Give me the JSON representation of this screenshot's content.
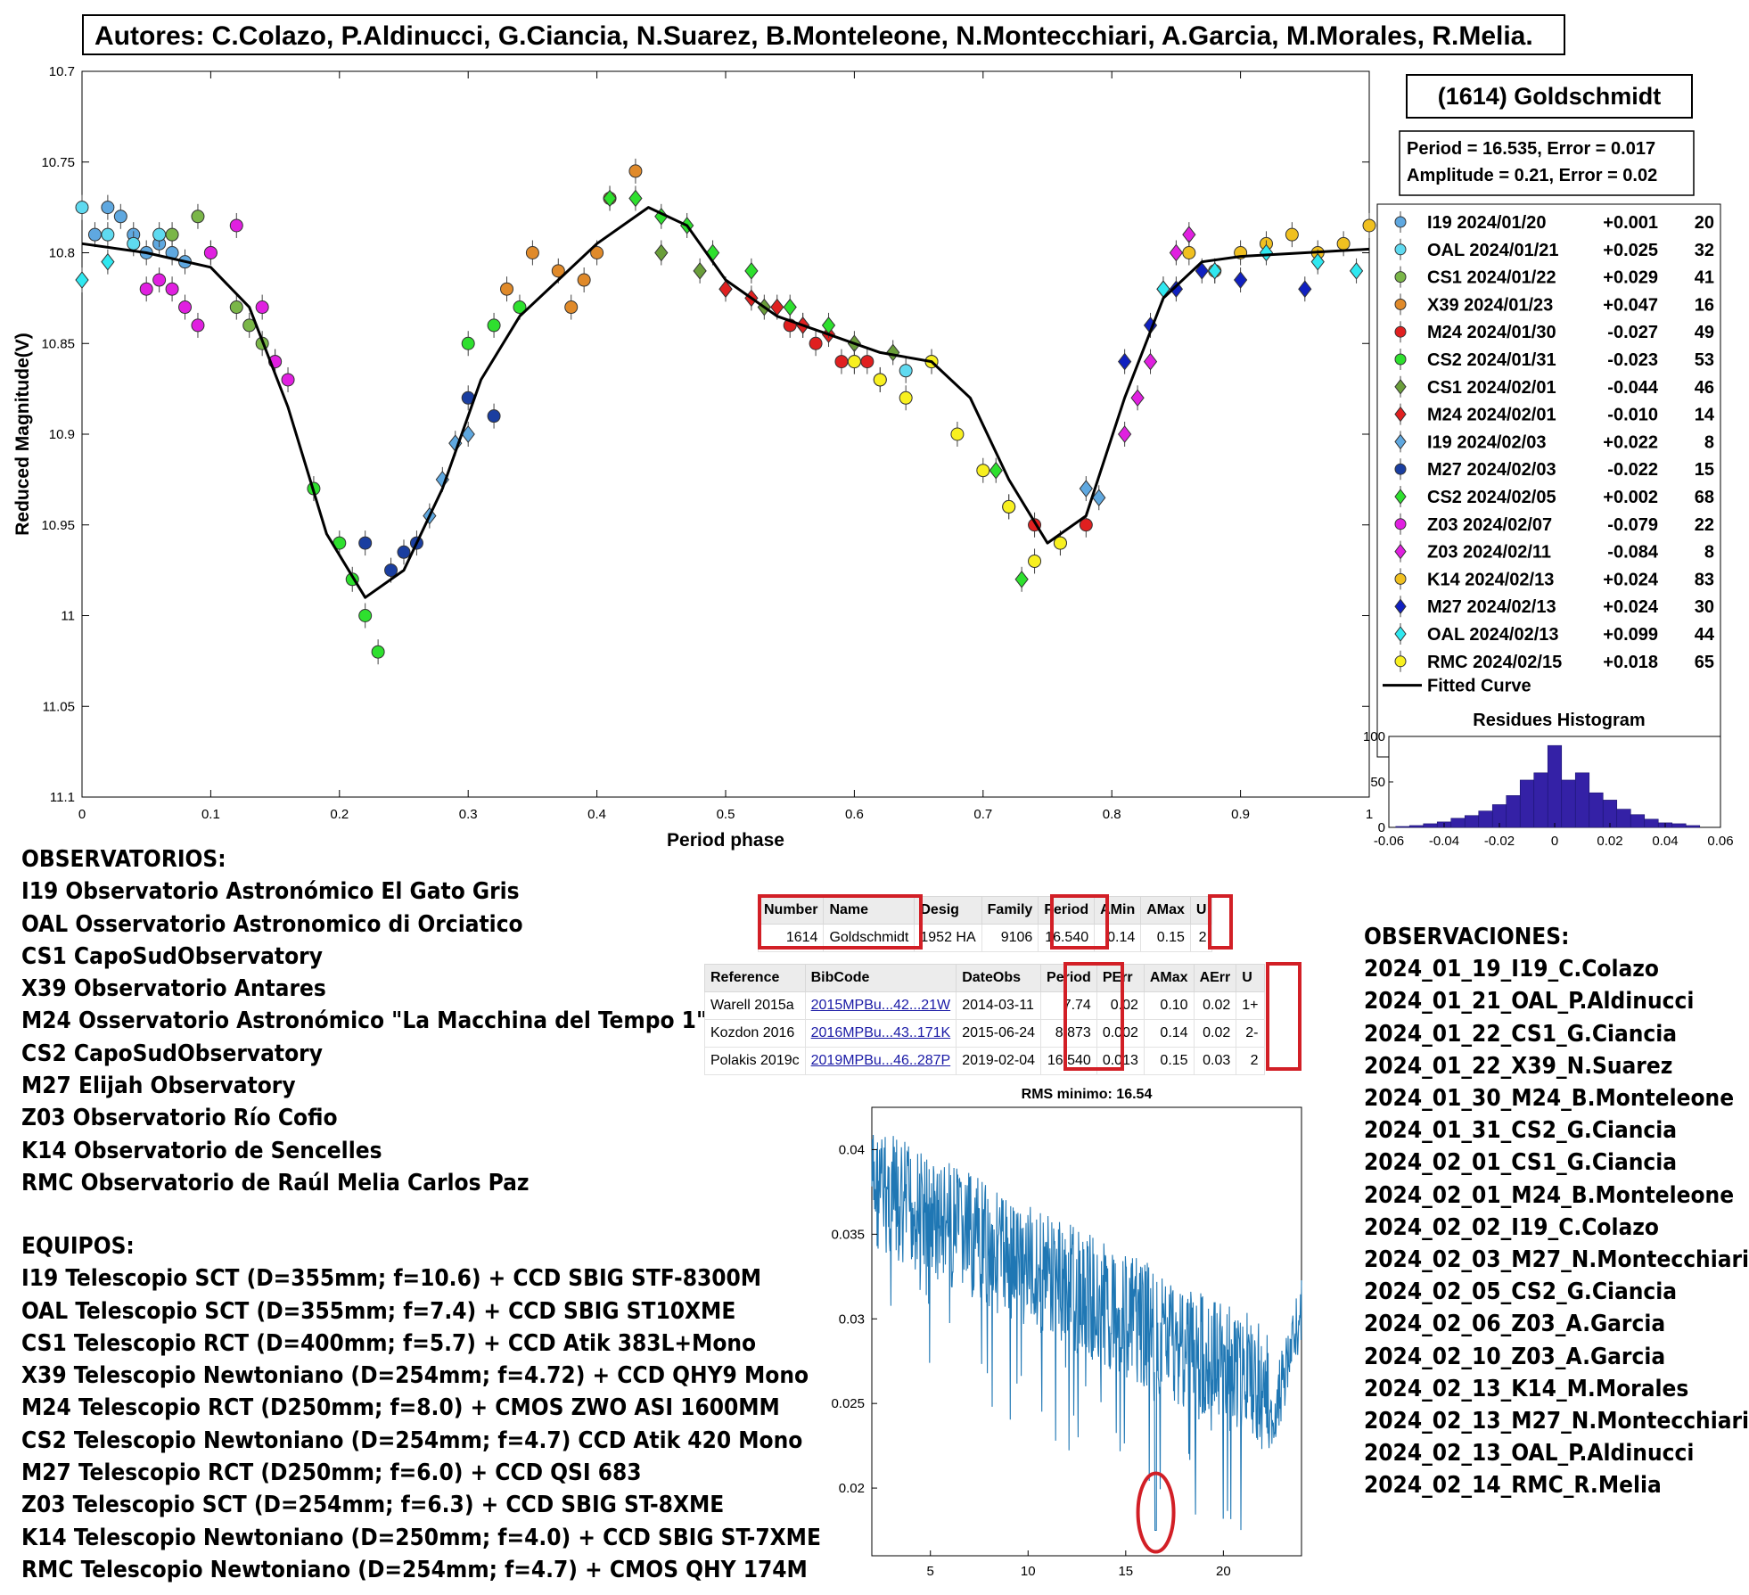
{
  "authors": "Autores: C.Colazo, P.Aldinucci, G.Ciancia, N.Suarez, B.Monteleone, N.Montecchiari, A.Garcia, M.Morales, R.Melia.",
  "object_name": "(1614) Goldschmidt",
  "period_text": "Period =  16.535, Error = 0.017",
  "amplitude_text": "Amplitude = 0.21, Error = 0.02",
  "chart_data": [
    {
      "type": "scatter",
      "xlabel": "Period phase",
      "ylabel": "Reduced Magnitude(V)",
      "xlim": [
        0,
        1
      ],
      "ylim": [
        10.7,
        11.1
      ],
      "y_reversed": true,
      "x_ticks": [
        "0",
        "0.1",
        "0.2",
        "0.3",
        "0.4",
        "0.5",
        "0.6",
        "0.7",
        "0.8",
        "0.9",
        "1"
      ],
      "y_ticks": [
        "10.7",
        "10.75",
        "10.8",
        "10.85",
        "10.9",
        "10.95",
        "11",
        "11.05",
        "11.1"
      ],
      "fitted_curve": {
        "name": "Fitted Curve",
        "x": [
          0,
          0.05,
          0.1,
          0.13,
          0.16,
          0.19,
          0.22,
          0.25,
          0.28,
          0.31,
          0.34,
          0.37,
          0.4,
          0.44,
          0.47,
          0.5,
          0.54,
          0.58,
          0.62,
          0.66,
          0.69,
          0.72,
          0.75,
          0.78,
          0.81,
          0.84,
          0.87,
          0.9,
          0.95,
          1.0
        ],
        "y": [
          10.795,
          10.8,
          10.808,
          10.83,
          10.885,
          10.955,
          10.99,
          10.975,
          10.93,
          10.87,
          10.835,
          10.815,
          10.795,
          10.775,
          10.785,
          10.815,
          10.835,
          10.845,
          10.855,
          10.86,
          10.88,
          10.925,
          10.96,
          10.945,
          10.88,
          10.825,
          10.805,
          10.802,
          10.8,
          10.798
        ]
      },
      "legend_position": "right",
      "series": [
        {
          "name": "I19 2024/01/20",
          "offset": "+0.001",
          "count": "20",
          "color": "#5fa8e0",
          "marker": "circle",
          "x": [
            0.01,
            0.02,
            0.03,
            0.04,
            0.05,
            0.06,
            0.07,
            0.08
          ],
          "y": [
            10.79,
            10.775,
            10.78,
            10.79,
            10.8,
            10.795,
            10.8,
            10.805
          ]
        },
        {
          "name": "OAL 2024/01/21",
          "offset": "+0.025",
          "count": "32",
          "color": "#5fdaf0",
          "marker": "circle",
          "x": [
            0.0,
            0.02,
            0.04,
            0.06,
            0.6,
            0.62,
            0.64,
            0.66
          ],
          "y": [
            10.775,
            10.79,
            10.795,
            10.79,
            10.86,
            10.87,
            10.865,
            10.86
          ]
        },
        {
          "name": "CS1 2024/01/22",
          "offset": "+0.029",
          "count": "41",
          "color": "#7ab648",
          "marker": "circle",
          "x": [
            0.07,
            0.09,
            0.1,
            0.12,
            0.13,
            0.14,
            0.15
          ],
          "y": [
            10.79,
            10.78,
            10.8,
            10.83,
            10.84,
            10.85,
            10.86
          ]
        },
        {
          "name": "X39 2024/01/23",
          "offset": "+0.047",
          "count": "16",
          "color": "#e08a2a",
          "marker": "circle",
          "x": [
            0.33,
            0.35,
            0.37,
            0.38,
            0.39,
            0.4,
            0.41,
            0.43
          ],
          "y": [
            10.82,
            10.8,
            10.81,
            10.83,
            10.815,
            10.8,
            10.77,
            10.755
          ]
        },
        {
          "name": "M24 2024/01/30",
          "offset": "-0.027",
          "count": "49",
          "color": "#e02020",
          "marker": "circle",
          "x": [
            0.55,
            0.57,
            0.59,
            0.61,
            0.72,
            0.74,
            0.76,
            0.78
          ],
          "y": [
            10.84,
            10.85,
            10.86,
            10.86,
            10.94,
            10.95,
            10.96,
            10.95
          ]
        },
        {
          "name": "CS2 2024/01/31",
          "offset": "-0.023",
          "count": "53",
          "color": "#2ee02e",
          "marker": "circle",
          "x": [
            0.18,
            0.2,
            0.21,
            0.22,
            0.23,
            0.3,
            0.32,
            0.34
          ],
          "y": [
            10.93,
            10.96,
            10.98,
            11.0,
            11.02,
            10.85,
            10.84,
            10.83
          ]
        },
        {
          "name": "CS1 2024/02/01",
          "offset": "-0.044",
          "count": "46",
          "color": "#6a9e3a",
          "marker": "diamond",
          "x": [
            0.45,
            0.48,
            0.5,
            0.53,
            0.56,
            0.6,
            0.63
          ],
          "y": [
            10.8,
            10.81,
            10.82,
            10.83,
            10.84,
            10.85,
            10.855
          ]
        },
        {
          "name": "M24 2024/02/01",
          "offset": "-0.010",
          "count": "14",
          "color": "#e02020",
          "marker": "diamond",
          "x": [
            0.5,
            0.52,
            0.54,
            0.56,
            0.58
          ],
          "y": [
            10.82,
            10.825,
            10.83,
            10.84,
            10.845
          ]
        },
        {
          "name": "I19 2024/02/03",
          "offset": "+0.022",
          "count": "8",
          "color": "#5fa8e0",
          "marker": "diamond",
          "x": [
            0.27,
            0.28,
            0.29,
            0.3,
            0.78,
            0.79
          ],
          "y": [
            10.945,
            10.925,
            10.905,
            10.9,
            10.93,
            10.935
          ]
        },
        {
          "name": "M27 2024/02/03",
          "offset": "-0.022",
          "count": "15",
          "color": "#1a3ea0",
          "marker": "circle",
          "x": [
            0.22,
            0.24,
            0.25,
            0.26,
            0.3,
            0.32
          ],
          "y": [
            10.96,
            10.975,
            10.965,
            10.96,
            10.88,
            10.89
          ]
        },
        {
          "name": "CS2 2024/02/05",
          "offset": "+0.002",
          "count": "68",
          "color": "#2ee02e",
          "marker": "diamond",
          "x": [
            0.41,
            0.43,
            0.45,
            0.47,
            0.49,
            0.52,
            0.55,
            0.58,
            0.71,
            0.73
          ],
          "y": [
            10.77,
            10.77,
            10.78,
            10.785,
            10.8,
            10.81,
            10.83,
            10.84,
            10.92,
            10.98
          ]
        },
        {
          "name": "Z03 2024/02/07",
          "offset": "-0.079",
          "count": "22",
          "color": "#e020e0",
          "marker": "circle",
          "x": [
            0.05,
            0.06,
            0.07,
            0.08,
            0.09,
            0.1,
            0.12,
            0.14,
            0.15,
            0.16
          ],
          "y": [
            10.82,
            10.815,
            10.82,
            10.83,
            10.84,
            10.8,
            10.785,
            10.83,
            10.86,
            10.87
          ]
        },
        {
          "name": "Z03 2024/02/11",
          "offset": "-0.084",
          "count": "8",
          "color": "#e020e0",
          "marker": "diamond",
          "x": [
            0.81,
            0.82,
            0.83,
            0.84,
            0.85,
            0.86
          ],
          "y": [
            10.9,
            10.88,
            10.86,
            10.82,
            10.8,
            10.79
          ]
        },
        {
          "name": "K14 2024/02/13",
          "offset": "+0.024",
          "count": "83",
          "color": "#f0c020",
          "marker": "circle",
          "x": [
            0.86,
            0.88,
            0.9,
            0.92,
            0.94,
            0.96,
            0.98,
            1.0
          ],
          "y": [
            10.8,
            10.81,
            10.8,
            10.795,
            10.79,
            10.8,
            10.795,
            10.785
          ]
        },
        {
          "name": "M27 2024/02/13",
          "offset": "+0.024",
          "count": "30",
          "color": "#1020c0",
          "marker": "diamond",
          "x": [
            0.81,
            0.83,
            0.85,
            0.87,
            0.9,
            0.95
          ],
          "y": [
            10.86,
            10.84,
            10.82,
            10.81,
            10.815,
            10.82
          ]
        },
        {
          "name": "OAL 2024/02/13",
          "offset": "+0.099",
          "count": "44",
          "color": "#30e8f0",
          "marker": "diamond",
          "x": [
            0.0,
            0.02,
            0.84,
            0.88,
            0.92,
            0.96,
            0.99
          ],
          "y": [
            10.815,
            10.805,
            10.82,
            10.81,
            10.8,
            10.805,
            10.81
          ]
        },
        {
          "name": "RMC 2024/02/15",
          "offset": "+0.018",
          "count": "65",
          "color": "#f8f020",
          "marker": "circle",
          "x": [
            0.6,
            0.62,
            0.64,
            0.66,
            0.68,
            0.7,
            0.72,
            0.74,
            0.76
          ],
          "y": [
            10.86,
            10.87,
            10.88,
            10.86,
            10.9,
            10.92,
            10.94,
            10.97,
            10.96
          ]
        }
      ]
    },
    {
      "type": "bar",
      "title": "Residues Histogram",
      "x": [
        -0.06,
        -0.055,
        -0.05,
        -0.045,
        -0.04,
        -0.035,
        -0.03,
        -0.025,
        -0.02,
        -0.015,
        -0.01,
        -0.005,
        0,
        0.005,
        0.01,
        0.015,
        0.02,
        0.025,
        0.03,
        0.035,
        0.04,
        0.045,
        0.05
      ],
      "values": [
        0,
        1,
        2,
        4,
        6,
        10,
        13,
        18,
        25,
        35,
        52,
        60,
        90,
        52,
        60,
        38,
        30,
        20,
        14,
        9,
        5,
        4,
        2
      ],
      "xlim": [
        -0.06,
        0.06
      ],
      "ylim": [
        0,
        100
      ],
      "x_ticks": [
        "-0.06",
        "-0.04",
        "-0.02",
        "0",
        "0.02",
        "0.04",
        "0.06"
      ],
      "y_ticks": [
        "0",
        "50",
        "100"
      ],
      "color": "#3421a6"
    },
    {
      "type": "line",
      "title": "RMS minimo: 16.54",
      "xlim": [
        2,
        24
      ],
      "ylim": [
        0.016,
        0.0425
      ],
      "x_ticks": [
        "5",
        "10",
        "15",
        "20"
      ],
      "y_ticks": [
        "0.02",
        "0.025",
        "0.03",
        "0.035",
        "0.04"
      ],
      "minimum": {
        "x": 16.54,
        "y": 0.0175
      },
      "color": "#1f77b4"
    }
  ],
  "tables": {
    "summary": {
      "headers": [
        "Number",
        "Name",
        "Desig",
        "Family",
        "Period",
        "AMin",
        "AMax",
        "U"
      ],
      "row": [
        "1614",
        "Goldschmidt",
        "1952 HA",
        "9106",
        "16.540",
        "0.14",
        "0.15",
        "2"
      ]
    },
    "references": {
      "headers": [
        "Reference",
        "BibCode",
        "DateObs",
        "Period",
        "PErr",
        "AMax",
        "AErr",
        "U"
      ],
      "rows": [
        [
          "Warell 2015a",
          "2015MPBu...42...21W",
          "2014-03-11",
          "7.74",
          "0.02",
          "0.10",
          "0.02",
          "1+"
        ],
        [
          "Kozdon 2016",
          "2016MPBu...43..171K",
          "2015-06-24",
          "8.873",
          "0.002",
          "0.14",
          "0.02",
          "2-"
        ],
        [
          "Polakis 2019c",
          "2019MPBu...46..287P",
          "2019-02-04",
          "16.540",
          "0.013",
          "0.15",
          "0.03",
          "2"
        ]
      ]
    }
  },
  "observatorios": {
    "title": "OBSERVATORIOS:",
    "items": [
      "I19 Observatorio Astronómico El Gato Gris",
      "OAL Osservatorio Astronomico di Orciatico",
      "CS1 CapoSudObservatory",
      "X39 Observatorio Antares",
      "M24 Osservatorio Astronómico \"La Macchina del Tempo 1\"",
      "CS2 CapoSudObservatory",
      "M27 Elijah Observatory",
      "Z03 Observatorio Río Cofio",
      "K14 Observatorio de Sencelles",
      "RMC Observatorio de Raúl Melia Carlos Paz"
    ]
  },
  "equipos": {
    "title": "EQUIPOS:",
    "items": [
      "I19 Telescopio SCT (D=355mm; f=10.6) + CCD SBIG STF-8300M",
      "OAL Telescopio SCT (D=355mm; f=7.4) + CCD SBIG ST10XME",
      "CS1 Telescopio RCT (D=400mm; f=5.7) + CCD Atik 383L+Mono",
      "X39 Telescopio Newtoniano (D=254mm; f=4.72) + CCD QHY9 Mono",
      "M24 Telescopio RCT (D250mm; f=8.0) + CMOS ZWO ASI 1600MM",
      "CS2 Telescopio Newtoniano (D=254mm; f=4.7) CCD Atik 420 Mono",
      "M27 Telescopio RCT (D250mm; f=6.0) + CCD QSI 683",
      "Z03 Telescopio SCT (D=254mm; f=6.3) + CCD SBIG ST-8XME",
      "K14 Telescopio Newtoniano (D=250mm; f=4.0) + CCD SBIG ST-7XME",
      "RMC Telescopio Newtoniano (D=254mm; f=4.7) + CMOS QHY 174M"
    ]
  },
  "observaciones": {
    "title": "OBSERVACIONES:",
    "items": [
      "2024_01_19_I19_C.Colazo",
      "2024_01_21_OAL_P.Aldinucci",
      "2024_01_22_CS1_G.Ciancia",
      "2024_01_22_X39_N.Suarez",
      "2024_01_30_M24_B.Monteleone",
      "2024_01_31_CS2_G.Ciancia",
      "2024_02_01_CS1_G.Ciancia",
      "2024_02_01_M24_B.Monteleone",
      "2024_02_02_I19_C.Colazo",
      "2024_02_03_M27_N.Montecchiari",
      "2024_02_05_CS2_G.Ciancia",
      "2024_02_06_Z03_A.Garcia",
      "2024_02_10_Z03_A.Garcia",
      "2024_02_13_K14_M.Morales",
      "2024_02_13_M27_N.Montecchiari",
      "2024_02_13_OAL_P.Aldinucci",
      "2024_02_14_RMC_R.Melia"
    ]
  }
}
